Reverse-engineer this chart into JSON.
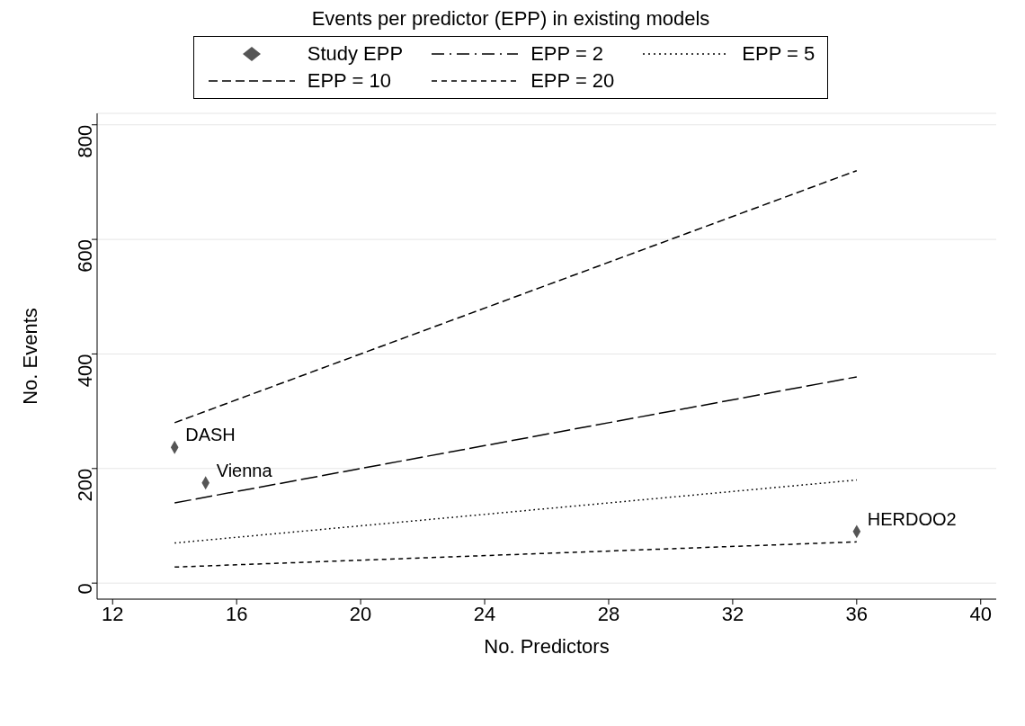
{
  "chart_data": {
    "type": "line",
    "title": "Events per predictor (EPP) in existing models",
    "xlabel": "No. Predictors",
    "ylabel": "No. Events",
    "xlim": [
      11.5,
      40.5
    ],
    "xticks": [
      12,
      16,
      20,
      24,
      28,
      32,
      36,
      40
    ],
    "ylim": [
      -28,
      820
    ],
    "yticks": [
      0,
      200,
      400,
      600,
      800
    ],
    "grid": "y",
    "legend": "top",
    "series": [
      {
        "name": "Study EPP",
        "type": "scatter",
        "marker": "diamond",
        "color": "#555555",
        "x": [
          14,
          15,
          36
        ],
        "values": [
          237,
          175,
          90
        ]
      },
      {
        "name": "EPP = 2",
        "line_style": "dashed",
        "color": "#000000",
        "x": [
          14,
          36
        ],
        "values": [
          28,
          72
        ]
      },
      {
        "name": "EPP = 5",
        "line_style": "dotted",
        "color": "#000000",
        "x": [
          14,
          36
        ],
        "values": [
          70,
          180
        ]
      },
      {
        "name": "EPP = 10",
        "line_style": "dashed",
        "color": "#000000",
        "x": [
          14,
          36
        ],
        "values": [
          140,
          360
        ]
      },
      {
        "name": "EPP = 20",
        "line_style": "dashed",
        "color": "#000000",
        "x": [
          14,
          36
        ],
        "values": [
          280,
          720
        ]
      }
    ],
    "annotations": [
      {
        "text": "DASH",
        "x": 14,
        "y": 237
      },
      {
        "text": "Vienna",
        "x": 15,
        "y": 175
      },
      {
        "text": "HERDOO2",
        "x": 36,
        "y": 90
      }
    ]
  }
}
